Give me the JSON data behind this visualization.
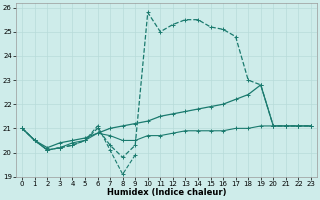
{
  "x_values": [
    0,
    1,
    2,
    3,
    4,
    5,
    6,
    7,
    8,
    9,
    10,
    11,
    12,
    13,
    14,
    15,
    16,
    17,
    18,
    19,
    20,
    21,
    22,
    23
  ],
  "line1": [
    21.0,
    20.5,
    20.1,
    20.2,
    20.3,
    20.5,
    21.1,
    20.1,
    19.1,
    19.9,
    null,
    null,
    null,
    null,
    null,
    null,
    null,
    null,
    null,
    null,
    null,
    null,
    null,
    null
  ],
  "line2": [
    21.0,
    20.5,
    20.1,
    20.2,
    20.4,
    20.5,
    20.8,
    20.7,
    20.5,
    20.5,
    20.7,
    20.7,
    20.8,
    20.9,
    20.9,
    20.9,
    20.9,
    21.0,
    21.0,
    21.1,
    21.1,
    21.1,
    21.1,
    21.1
  ],
  "line3": [
    21.0,
    20.5,
    20.1,
    20.2,
    20.3,
    20.5,
    21.0,
    20.3,
    19.8,
    20.3,
    25.8,
    25.0,
    25.3,
    25.5,
    25.5,
    25.2,
    25.1,
    24.8,
    23.0,
    22.8,
    21.1,
    21.1,
    21.1,
    21.1
  ],
  "line4": [
    21.0,
    20.5,
    20.2,
    20.4,
    20.5,
    20.6,
    20.8,
    21.0,
    21.1,
    21.2,
    21.3,
    21.5,
    21.6,
    21.7,
    21.8,
    21.9,
    22.0,
    22.2,
    22.4,
    22.8,
    21.1,
    21.1,
    21.1,
    21.1
  ],
  "bg_color": "#ceecea",
  "grid_color": "#b8dbd9",
  "line_color": "#1a7a6e",
  "xlabel": "Humidex (Indice chaleur)",
  "xlim": [
    -0.5,
    23.5
  ],
  "ylim": [
    19,
    26.2
  ],
  "yticks": [
    19,
    20,
    21,
    22,
    23,
    24,
    25,
    26
  ],
  "xticks": [
    0,
    1,
    2,
    3,
    4,
    5,
    6,
    7,
    8,
    9,
    10,
    11,
    12,
    13,
    14,
    15,
    16,
    17,
    18,
    19,
    20,
    21,
    22,
    23
  ]
}
